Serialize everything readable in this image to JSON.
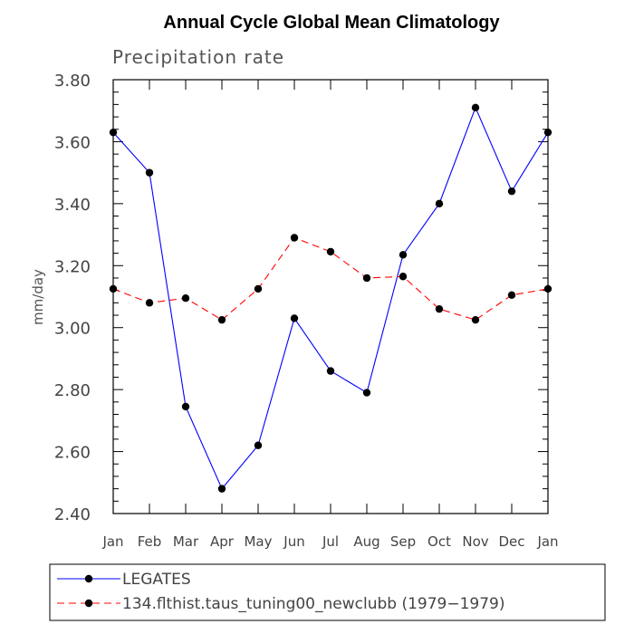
{
  "chart_data": {
    "type": "line",
    "title": "Annual Cycle Global Mean Climatology",
    "subtitle": "Precipitation rate",
    "xlabel": "",
    "ylabel": "mm/day",
    "ylim": [
      2.4,
      3.8
    ],
    "y_ticks": [
      "2.40",
      "2.60",
      "2.80",
      "3.00",
      "3.20",
      "3.40",
      "3.60",
      "3.80"
    ],
    "categories": [
      "Jan",
      "Feb",
      "Mar",
      "Apr",
      "May",
      "Jun",
      "Jul",
      "Aug",
      "Sep",
      "Oct",
      "Nov",
      "Dec",
      "Jan"
    ],
    "series": [
      {
        "name": "LEGATES",
        "color": "#0000ff",
        "dash": "solid",
        "values": [
          3.63,
          3.5,
          2.745,
          2.48,
          2.62,
          3.03,
          2.86,
          2.79,
          3.235,
          3.4,
          3.71,
          3.44,
          3.63
        ]
      },
      {
        "name": "134.flthist.taus_tuning00_newclubb (1979−1979)",
        "color": "#ff0000",
        "dash": "dashed",
        "values": [
          3.125,
          3.08,
          3.095,
          3.025,
          3.125,
          3.29,
          3.245,
          3.16,
          3.165,
          3.06,
          3.025,
          3.105,
          3.125
        ]
      }
    ],
    "legend_position": "bottom-left"
  }
}
